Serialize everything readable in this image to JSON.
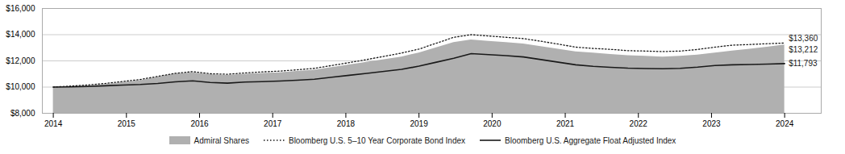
{
  "chart_data": {
    "type": "line",
    "x": [
      2014,
      2014.238095238,
      2014.476190476,
      2014.714285714,
      2014.952380952,
      2015.19047619,
      2015.428571429,
      2015.666666667,
      2015.904761905,
      2016.142857143,
      2016.380952381,
      2016.619047619,
      2016.857142857,
      2017.095238095,
      2017.333333333,
      2017.571428571,
      2017.80952381,
      2018.047619048,
      2018.285714286,
      2018.523809524,
      2018.761904762,
      2019,
      2019.238095238,
      2019.476190476,
      2019.714285714,
      2019.952380952,
      2020.19047619,
      2020.428571429,
      2020.666666667,
      2020.904761905,
      2021.142857143,
      2021.380952381,
      2021.619047619,
      2021.857142857,
      2022.095238095,
      2022.333333333,
      2022.571428571,
      2022.80952381,
      2023.047619048,
      2023.285714286,
      2023.523809524,
      2023.761904762,
      2024
    ],
    "xlim": [
      2013.85,
      2024.5
    ],
    "xticks": [
      2014,
      2015,
      2016,
      2017,
      2018,
      2019,
      2020,
      2021,
      2022,
      2023,
      2024
    ],
    "ylim": [
      8000,
      16000
    ],
    "yticks": [
      {
        "value": 8000,
        "label": "$8,000"
      },
      {
        "value": 10000,
        "label": "$10,000"
      },
      {
        "value": 12000,
        "label": "$12,000"
      },
      {
        "value": 14000,
        "label": "$14,000"
      },
      {
        "value": 16000,
        "label": "$16,000"
      }
    ],
    "grid": true,
    "legend": "bottom",
    "series": [
      {
        "name": "Admiral Shares",
        "type": "area",
        "color": "#b0b0b0",
        "values": [
          10000,
          10050,
          10100,
          10200,
          10350,
          10500,
          10750,
          11000,
          11100,
          10950,
          10900,
          10980,
          11050,
          11100,
          11200,
          11300,
          11500,
          11700,
          11900,
          12100,
          12300,
          12600,
          13000,
          13400,
          13600,
          13500,
          13400,
          13300,
          13100,
          12900,
          12700,
          12600,
          12500,
          12400,
          12350,
          12300,
          12350,
          12450,
          12600,
          12750,
          12900,
          13050,
          13212
        ]
      },
      {
        "name": "Bloomberg U.S. 5–10 Year Corporate Bond Index",
        "type": "line",
        "color": "#1a1a1a",
        "line_style": "dotted",
        "values": [
          10000,
          10080,
          10160,
          10280,
          10430,
          10580,
          10820,
          11050,
          11180,
          11020,
          10980,
          11080,
          11160,
          11220,
          11320,
          11430,
          11650,
          11870,
          12100,
          12350,
          12600,
          12900,
          13350,
          13800,
          14000,
          13900,
          13800,
          13700,
          13500,
          13280,
          13050,
          12950,
          12880,
          12780,
          12750,
          12710,
          12750,
          12870,
          13050,
          13200,
          13250,
          13310,
          13360
        ]
      },
      {
        "name": "Bloomberg U.S. Aggregate Float Adjusted Index",
        "type": "line",
        "color": "#1a1a1a",
        "line_style": "solid",
        "values": [
          10000,
          10020,
          10050,
          10100,
          10150,
          10200,
          10280,
          10400,
          10480,
          10350,
          10300,
          10380,
          10420,
          10460,
          10520,
          10600,
          10750,
          10900,
          11050,
          11200,
          11350,
          11600,
          11900,
          12200,
          12550,
          12480,
          12400,
          12300,
          12100,
          11900,
          11700,
          11580,
          11510,
          11450,
          11420,
          11400,
          11430,
          11520,
          11650,
          11700,
          11720,
          11750,
          11793
        ]
      }
    ],
    "annotations": [
      {
        "text": "$13,360",
        "x": 2024,
        "y": 13360
      },
      {
        "text": "$13,212",
        "x": 2024,
        "y": 13212
      },
      {
        "text": "$11,793",
        "x": 2024,
        "y": 11793
      }
    ]
  }
}
